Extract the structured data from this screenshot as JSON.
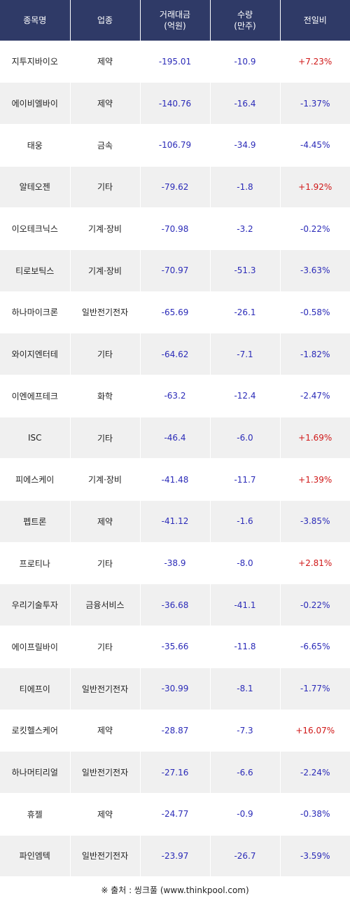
{
  "header": {
    "name": "종목명",
    "sector": "업종",
    "amount": [
      "거래대금",
      "(억원)"
    ],
    "volume": [
      "수량",
      "(만주)"
    ],
    "change": "전일비"
  },
  "rows": [
    {
      "name": "지투지바이오",
      "sector": "제약",
      "amount": "-195.01",
      "volume": "-10.9",
      "change": "+7.23%",
      "dir": "up"
    },
    {
      "name": "에이비엘바이",
      "sector": "제약",
      "amount": "-140.76",
      "volume": "-16.4",
      "change": "-1.37%",
      "dir": "down"
    },
    {
      "name": "태웅",
      "sector": "금속",
      "amount": "-106.79",
      "volume": "-34.9",
      "change": "-4.45%",
      "dir": "down"
    },
    {
      "name": "알테오젠",
      "sector": "기타",
      "amount": "-79.62",
      "volume": "-1.8",
      "change": "+1.92%",
      "dir": "up"
    },
    {
      "name": "이오테크닉스",
      "sector": "기계·장비",
      "amount": "-70.98",
      "volume": "-3.2",
      "change": "-0.22%",
      "dir": "down"
    },
    {
      "name": "티로보틱스",
      "sector": "기계·장비",
      "amount": "-70.97",
      "volume": "-51.3",
      "change": "-3.63%",
      "dir": "down"
    },
    {
      "name": "하나마이크론",
      "sector": "일반전기전자",
      "amount": "-65.69",
      "volume": "-26.1",
      "change": "-0.58%",
      "dir": "down"
    },
    {
      "name": "와이지엔터테",
      "sector": "기타",
      "amount": "-64.62",
      "volume": "-7.1",
      "change": "-1.82%",
      "dir": "down"
    },
    {
      "name": "이엔에프테크",
      "sector": "화학",
      "amount": "-63.2",
      "volume": "-12.4",
      "change": "-2.47%",
      "dir": "down"
    },
    {
      "name": "ISC",
      "sector": "기타",
      "amount": "-46.4",
      "volume": "-6.0",
      "change": "+1.69%",
      "dir": "up"
    },
    {
      "name": "피에스케이",
      "sector": "기계·장비",
      "amount": "-41.48",
      "volume": "-11.7",
      "change": "+1.39%",
      "dir": "up"
    },
    {
      "name": "펩트론",
      "sector": "제약",
      "amount": "-41.12",
      "volume": "-1.6",
      "change": "-3.85%",
      "dir": "down"
    },
    {
      "name": "프로티나",
      "sector": "기타",
      "amount": "-38.9",
      "volume": "-8.0",
      "change": "+2.81%",
      "dir": "up"
    },
    {
      "name": "우리기술투자",
      "sector": "금융서비스",
      "amount": "-36.68",
      "volume": "-41.1",
      "change": "-0.22%",
      "dir": "down"
    },
    {
      "name": "에이프릴바이",
      "sector": "기타",
      "amount": "-35.66",
      "volume": "-11.8",
      "change": "-6.65%",
      "dir": "down"
    },
    {
      "name": "티에프이",
      "sector": "일반전기전자",
      "amount": "-30.99",
      "volume": "-8.1",
      "change": "-1.77%",
      "dir": "down"
    },
    {
      "name": "로킷헬스케어",
      "sector": "제약",
      "amount": "-28.87",
      "volume": "-7.3",
      "change": "+16.07%",
      "dir": "up"
    },
    {
      "name": "하나머티리얼",
      "sector": "일반전기전자",
      "amount": "-27.16",
      "volume": "-6.6",
      "change": "-2.24%",
      "dir": "down"
    },
    {
      "name": "휴젤",
      "sector": "제약",
      "amount": "-24.77",
      "volume": "-0.9",
      "change": "-0.38%",
      "dir": "down"
    },
    {
      "name": "파인엠텍",
      "sector": "일반전기전자",
      "amount": "-23.97",
      "volume": "-26.7",
      "change": "-3.59%",
      "dir": "down"
    }
  ],
  "source": "※ 출처 : 씽크풀 (www.thinkpool.com)",
  "colors": {
    "header_bg": "#2f3a67",
    "up": "#d01818",
    "down": "#2b2bb8",
    "row_alt": "#f0f0f0"
  }
}
